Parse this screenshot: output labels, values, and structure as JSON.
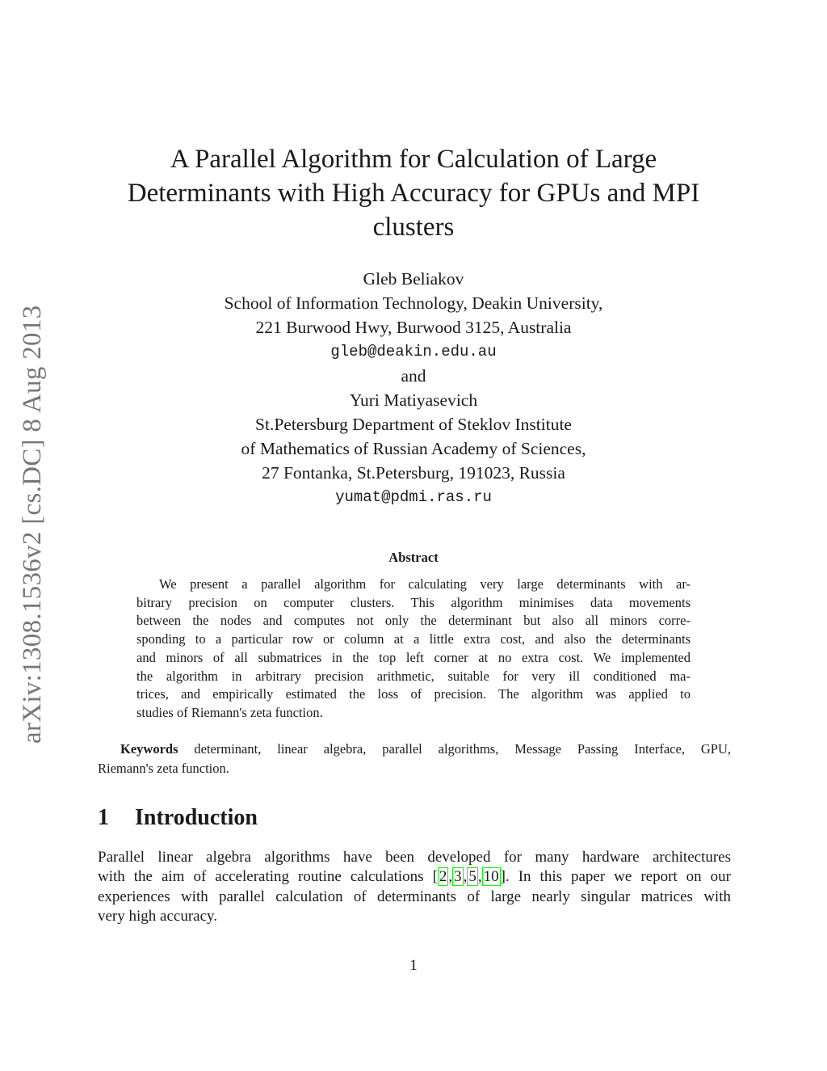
{
  "stamp": "arXiv:1308.1536v2  [cs.DC]  8 Aug 2013",
  "title_lines": [
    "A Parallel Algorithm for Calculation of Large",
    "Determinants with High Accuracy for GPUs and MPI",
    "clusters"
  ],
  "authors": {
    "a1_name": "Gleb Beliakov",
    "a1_aff1": "School of Information Technology, Deakin University,",
    "a1_aff2": "221 Burwood Hwy, Burwood 3125, Australia",
    "a1_email": "gleb@deakin.edu.au",
    "and": "and",
    "a2_name": "Yuri Matiyasevich",
    "a2_aff1": "St.Petersburg Department of Steklov Institute",
    "a2_aff2": "of Mathematics of Russian Academy of Sciences,",
    "a2_aff3": "27 Fontanka, St.Petersburg, 191023, Russia",
    "a2_email": "yumat@pdmi.ras.ru"
  },
  "abstract": {
    "heading": "Abstract",
    "lines": [
      "We present a parallel algorithm for calculating very large determinants with ar-",
      "bitrary precision on computer clusters.  This algorithm minimises data movements",
      "between the nodes and computes not only the determinant but also all minors corre-",
      "sponding to a particular row or column at a little extra cost, and also the determinants",
      "and minors of all submatrices in the top left corner at no extra cost. We implemented",
      "the algorithm in arbitrary precision arithmetic, suitable for very ill conditioned ma-",
      "trices, and empirically estimated the loss of precision.  The algorithm was applied to",
      "studies of Riemann's zeta function."
    ]
  },
  "keywords": {
    "label": "Keywords",
    "line1": " determinant, linear algebra, parallel algorithms, Message Passing Interface, GPU,",
    "line2": "Riemann's zeta function."
  },
  "section": {
    "number": "1",
    "title": "Introduction"
  },
  "intro": {
    "line1": "Parallel linear algebra algorithms have been developed for many hardware architectures",
    "line2_pre": "with the aim of accelerating routine calculations [",
    "cites": [
      "2",
      "3",
      "5",
      "10"
    ],
    "line2_post": "]. In this paper we report on our",
    "line3": "experiences with parallel calculation of determinants of large nearly singular matrices with",
    "line4": "very high accuracy."
  },
  "page_number": "1",
  "colors": {
    "citation_box": "#00ff00",
    "stamp": "#777777"
  }
}
